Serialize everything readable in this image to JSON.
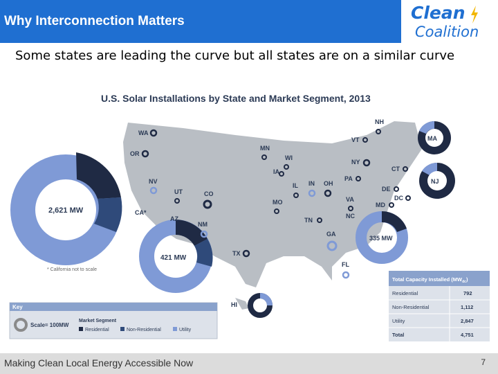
{
  "header": {
    "title": "Why Interconnection Matters",
    "logo_line1": "Clean",
    "logo_line2": "Coalition"
  },
  "subtitle": "Some states are leading the curve but all states are on a similar curve",
  "infographic": {
    "title": "U.S. Solar Installations by State and Market Segment, 2013",
    "california_note": "* California not to scale",
    "states": [
      "WA",
      "OR",
      "CA*",
      "NV",
      "UT",
      "AZ",
      "CO",
      "NM",
      "TX",
      "MN",
      "WI",
      "IA",
      "IN",
      "OH",
      "MO",
      "IL",
      "TN",
      "GA",
      "FL",
      "NC",
      "VA",
      "MD",
      "DC",
      "DE",
      "NJ",
      "CT",
      "NY",
      "PA",
      "MA",
      "VT",
      "NH",
      "HI"
    ],
    "big_donuts": {
      "CA": "2,621 MW",
      "AZ": "421 MW",
      "NC": "335 MW",
      "MA": "MA",
      "NJ": "NJ"
    },
    "key": {
      "title": "Key",
      "scale": "Scale= 100MW",
      "segment_label": "Market Segment",
      "residential": "Residential",
      "non_residential": "Non-Residential",
      "utility": "Utility"
    },
    "table": {
      "header": "Total Capacity Installed (MW",
      "header_sub": "dc",
      "header_end": ")",
      "rows": [
        {
          "label": "Residential",
          "value": "792"
        },
        {
          "label": "Non-Residential",
          "value": "1,112"
        },
        {
          "label": "Utility",
          "value": "2,847"
        },
        {
          "label": "Total",
          "value": "4,751"
        }
      ]
    }
  },
  "colors": {
    "residential": "#1f2a44",
    "non_residential": "#2f4a7a",
    "utility": "#7f9ad6",
    "map": "#b9bec4",
    "accent": "#1f6fd1"
  },
  "footer": {
    "tagline": "Making Clean Local Energy Accessible Now",
    "page_number": "7"
  }
}
